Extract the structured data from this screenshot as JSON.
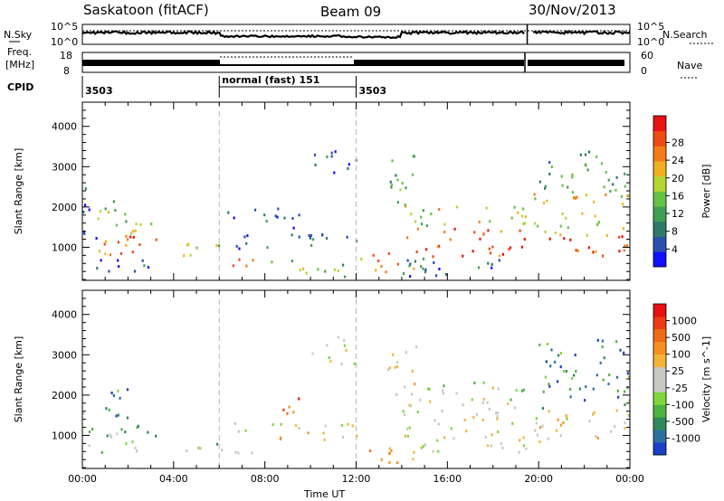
{
  "header": {
    "title": "Saskatoon (fitACF)",
    "beam": "Beam 09",
    "date": "30/Nov/2013"
  },
  "top_panels": {
    "nsky_label": "N.Sky",
    "nsky_ticks": [
      "10^5",
      "10^0"
    ],
    "nsearch_label": "N.Search",
    "nsearch_ticks": [
      "10^5",
      "10^0"
    ],
    "freq_label_1": "Freq.",
    "freq_label_2": "[MHz]",
    "freq_ticks": [
      "18",
      "8"
    ],
    "nave_label": "Nave",
    "nave_ticks": [
      "60",
      "0"
    ],
    "cpid_label": "CPID",
    "cpid_segments": [
      {
        "label": "3503",
        "start_hr": 0,
        "end_hr": 6
      },
      {
        "label": "normal (fast) 151",
        "start_hr": 6,
        "end_hr": 12
      },
      {
        "label": "3503",
        "start_hr": 12,
        "end_hr": 24
      }
    ]
  },
  "chart_data": [
    {
      "type": "heatmap",
      "name": "power",
      "ylabel": "Slant Range [km]",
      "xlabel": "",
      "x_ticks": [
        "00:00",
        "04:00",
        "08:00",
        "12:00",
        "16:00",
        "20:00",
        "00:00"
      ],
      "y_ticks": [
        "1000",
        "2000",
        "3000",
        "4000"
      ],
      "xlim_hr": [
        0,
        24
      ],
      "ylim_km": [
        180,
        4600
      ],
      "colorbar": {
        "label": "Power [dB]",
        "ticks": [
          "4",
          "8",
          "12",
          "16",
          "20",
          "24",
          "28"
        ],
        "colors": [
          "#1010ff",
          "#2a50b0",
          "#2e7a6a",
          "#3f9f55",
          "#66c244",
          "#b5d535",
          "#f0b020",
          "#f47c18",
          "#ef4a14",
          "#e81212"
        ]
      },
      "regions": [
        {
          "t0": 0.0,
          "t1": 0.6,
          "r0": 1200,
          "r1": 2900,
          "level": 0.2
        },
        {
          "t0": 0.0,
          "t1": 2.6,
          "r0": 800,
          "r1": 1500,
          "level": 0.7
        },
        {
          "t0": 0.6,
          "t1": 2.0,
          "r0": 1500,
          "r1": 2300,
          "level": 0.45
        },
        {
          "t0": 2.0,
          "t1": 3.3,
          "r0": 900,
          "r1": 1300,
          "level": 0.8
        },
        {
          "t0": 1.0,
          "t1": 3.3,
          "r0": 1400,
          "r1": 1700,
          "level": 0.55
        },
        {
          "t0": 0.0,
          "t1": 3.0,
          "r0": 400,
          "r1": 800,
          "level": 0.15
        },
        {
          "t0": 4.2,
          "t1": 5.2,
          "r0": 750,
          "r1": 1400,
          "level": 0.6
        },
        {
          "t0": 5.3,
          "t1": 6.0,
          "r0": 1000,
          "r1": 1400,
          "level": 0.45
        },
        {
          "t0": 6.0,
          "t1": 7.5,
          "r0": 400,
          "r1": 750,
          "level": 0.75
        },
        {
          "t0": 6.5,
          "t1": 12.0,
          "r0": 900,
          "r1": 1350,
          "level": 0.2
        },
        {
          "t0": 6.2,
          "t1": 9.5,
          "r0": 1500,
          "r1": 2000,
          "level": 0.15
        },
        {
          "t0": 8.0,
          "t1": 12.0,
          "r0": 300,
          "r1": 700,
          "level": 0.45
        },
        {
          "t0": 10.0,
          "t1": 12.0,
          "r0": 2800,
          "r1": 3500,
          "level": 0.15
        },
        {
          "t0": 12.0,
          "t1": 14.5,
          "r0": 400,
          "r1": 900,
          "level": 0.75
        },
        {
          "t0": 13.3,
          "t1": 14.6,
          "r0": 2000,
          "r1": 3400,
          "level": 0.4
        },
        {
          "t0": 14.0,
          "t1": 19.5,
          "r0": 800,
          "r1": 1500,
          "level": 0.85
        },
        {
          "t0": 14.0,
          "t1": 19.5,
          "r0": 1500,
          "r1": 2100,
          "level": 0.55
        },
        {
          "t0": 14.0,
          "t1": 19.5,
          "r0": 300,
          "r1": 800,
          "level": 0.2
        },
        {
          "t0": 19.7,
          "t1": 24.0,
          "r0": 800,
          "r1": 1300,
          "level": 0.85
        },
        {
          "t0": 19.7,
          "t1": 24.0,
          "r0": 1300,
          "r1": 2400,
          "level": 0.6
        },
        {
          "t0": 20.0,
          "t1": 24.0,
          "r0": 2400,
          "r1": 3400,
          "level": 0.35
        }
      ]
    },
    {
      "type": "heatmap",
      "name": "velocity",
      "ylabel": "Slant Range [km]",
      "xlabel": "Time UT",
      "x_ticks": [
        "00:00",
        "04:00",
        "08:00",
        "12:00",
        "16:00",
        "20:00",
        "00:00"
      ],
      "y_ticks": [
        "1000",
        "2000",
        "3000",
        "4000"
      ],
      "xlim_hr": [
        0,
        24
      ],
      "ylim_km": [
        180,
        4600
      ],
      "colorbar": {
        "label": "Velocity [m s^-1]",
        "ticks": [
          "1000",
          "500",
          "100",
          "25",
          "-25",
          "-100",
          "-500",
          "-1000"
        ],
        "colors": [
          "#1a3fc8",
          "#2b6fa0",
          "#2e8a5a",
          "#4cb440",
          "#80d63c",
          "#c8c8c0",
          "#c8c8c0",
          "#f4b43a",
          "#f59020",
          "#f06a16",
          "#ec3a12",
          "#e81010"
        ]
      },
      "regions": [
        {
          "t0": 0.0,
          "t1": 2.6,
          "r0": 600,
          "r1": 1000,
          "level": 0.35
        },
        {
          "t0": 0.0,
          "t1": 3.3,
          "r0": 1000,
          "r1": 1600,
          "level": 0.3
        },
        {
          "t0": 0.6,
          "t1": 2.0,
          "r0": 1500,
          "r1": 2300,
          "level": 0.2
        },
        {
          "t0": 4.2,
          "t1": 6.0,
          "r0": 600,
          "r1": 900,
          "level": 0.35
        },
        {
          "t0": 6.0,
          "t1": 7.5,
          "r0": 400,
          "r1": 750,
          "level": 0.4
        },
        {
          "t0": 6.5,
          "t1": 12.0,
          "r0": 900,
          "r1": 1350,
          "level": 0.55
        },
        {
          "t0": 8.3,
          "t1": 9.5,
          "r0": 1500,
          "r1": 2100,
          "level": 0.85
        },
        {
          "t0": 10.0,
          "t1": 12.0,
          "r0": 2800,
          "r1": 3500,
          "level": 0.5
        },
        {
          "t0": 12.0,
          "t1": 14.5,
          "r0": 300,
          "r1": 800,
          "level": 0.75
        },
        {
          "t0": 13.3,
          "t1": 14.6,
          "r0": 2000,
          "r1": 3400,
          "level": 0.55
        },
        {
          "t0": 14.0,
          "t1": 19.5,
          "r0": 600,
          "r1": 1800,
          "level": 0.5
        },
        {
          "t0": 14.5,
          "t1": 19.5,
          "r0": 1800,
          "r1": 2400,
          "level": 0.45
        },
        {
          "t0": 19.7,
          "t1": 24.0,
          "r0": 800,
          "r1": 1700,
          "level": 0.55
        },
        {
          "t0": 20.0,
          "t1": 24.0,
          "r0": 1700,
          "r1": 3400,
          "level": 0.2
        }
      ]
    }
  ]
}
